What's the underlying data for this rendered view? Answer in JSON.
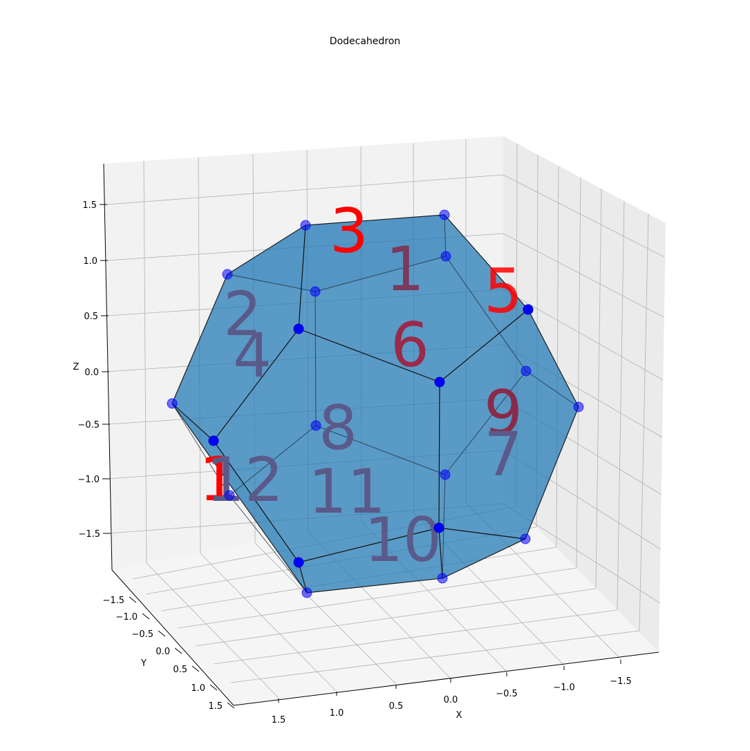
{
  "chart_data": {
    "type": "3d-polyhedron",
    "title": "Dodecahedron",
    "xlabel": "X",
    "ylabel": "Y",
    "zlabel": "Z",
    "xlim": [
      -1.8,
      1.8
    ],
    "ylim": [
      -1.8,
      1.8
    ],
    "zlim": [
      -1.8,
      1.8
    ],
    "x_ticks": [
      "−1.5",
      "−1.0",
      "−0.5",
      "0.0",
      "0.5",
      "1.0",
      "1.5"
    ],
    "y_ticks": [
      "−1.5",
      "−1.0",
      "−0.5",
      "0.0",
      "0.5",
      "1.0",
      "1.5"
    ],
    "z_ticks": [
      "−1.5",
      "−1.0",
      "−0.5",
      "0.0",
      "0.5",
      "1.0",
      "1.5"
    ],
    "face_color": "#1f77b4",
    "vertex_color": "#0000ff",
    "face_label_color": "#ff0000",
    "face_labels": [
      "1",
      "2",
      "3",
      "4",
      "5",
      "6",
      "7",
      "8",
      "9",
      "10",
      "11",
      "12"
    ],
    "grid": true
  }
}
